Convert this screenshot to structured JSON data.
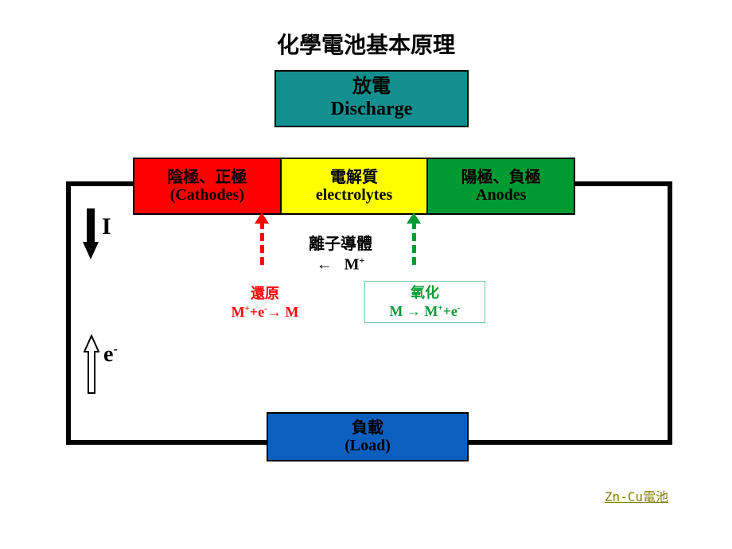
{
  "title": "化學電池基本原理",
  "discharge": {
    "cn": "放電",
    "en": "Discharge",
    "bg": "#148f8f"
  },
  "boxes": {
    "cathode": {
      "cn": "陰極、正極",
      "en": "(Cathodes)",
      "bg": "#ff0000"
    },
    "electrolyte": {
      "cn": "電解質",
      "en": "electrolytes",
      "bg": "#ffff00"
    },
    "anode": {
      "cn": "陽極、負極",
      "en": "Anodes",
      "bg": "#009a33"
    }
  },
  "load": {
    "cn": "負載",
    "en": "(Load)",
    "bg": "#0d5fbf"
  },
  "ion": {
    "label": "離子導體",
    "formula_html": "←&nbsp;&nbsp;&nbsp;M<sup>+</sup>"
  },
  "reduction": {
    "label": "還原",
    "formula_html": "M<sup>+</sup>+e<sup>-</sup>→ M",
    "color": "#ff0000"
  },
  "oxidation": {
    "label": "氧化",
    "formula_html": "M → M<sup>+</sup>+e<sup>-</sup>",
    "color": "#009a33",
    "border": "#72c89a"
  },
  "current_label": "I",
  "electron_label_html": "e<sup>-</sup>",
  "link": "Zn-Cu電池",
  "circuit_border": "#000000",
  "background": "#ffffff",
  "arrows": {
    "current": {
      "color": "#000000",
      "type": "solid-down"
    },
    "electron": {
      "color": "#000000",
      "type": "hollow-up"
    },
    "red_dash": {
      "color": "#ff0000"
    },
    "green_dash": {
      "color": "#009a33"
    }
  }
}
